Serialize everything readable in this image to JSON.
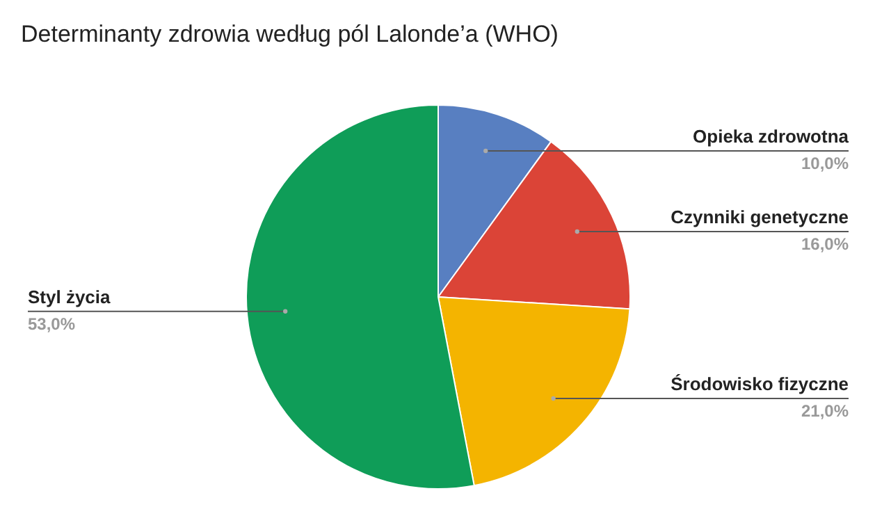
{
  "chart_data": {
    "type": "pie",
    "title": "Determinanty zdrowia według pól Lalonde’a (WHO)",
    "categories": [
      "Opieka zdrowotna",
      "Czynniki genetyczne",
      "Środowisko fizyczne",
      "Styl życia"
    ],
    "values": [
      10,
      16,
      21,
      53
    ],
    "value_labels": [
      "10,0%",
      "16,0%",
      "21,0%",
      "53,0%"
    ],
    "colors": [
      "#587fc1",
      "#db4437",
      "#f4b400",
      "#0f9d58"
    ]
  }
}
